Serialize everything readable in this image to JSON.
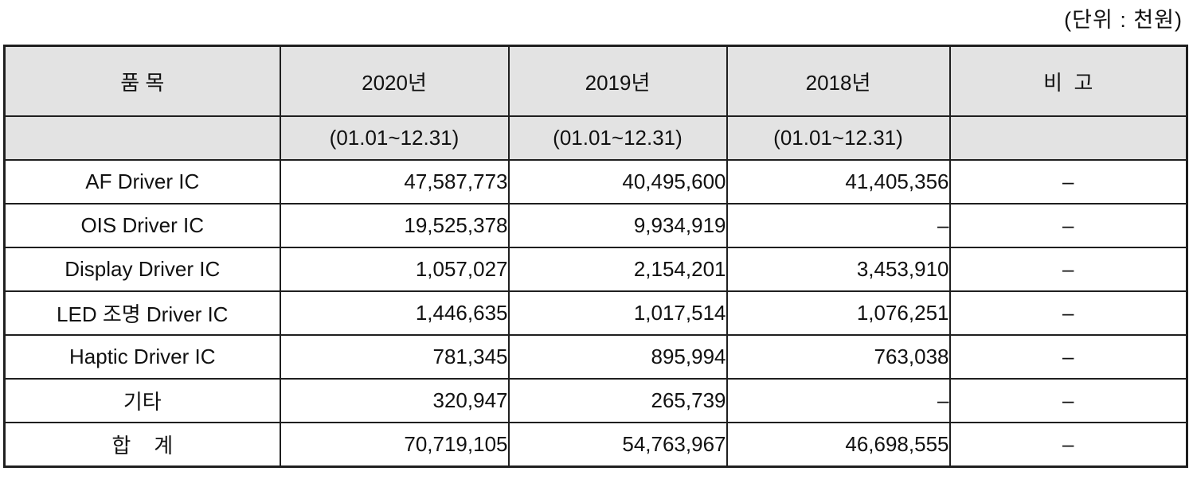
{
  "unit_label": "(단위 : 천원)",
  "table": {
    "columns": [
      {
        "label": "품 목",
        "sub": ""
      },
      {
        "label": "2020년",
        "sub": "(01.01~12.31)"
      },
      {
        "label": "2019년",
        "sub": "(01.01~12.31)"
      },
      {
        "label": "2018년",
        "sub": "(01.01~12.31)"
      },
      {
        "label": "비  고",
        "sub": ""
      }
    ],
    "rows": [
      {
        "item": "AF Driver IC",
        "y2020": "47,587,773",
        "y2019": "40,495,600",
        "y2018": "41,405,356",
        "note": "–"
      },
      {
        "item": "OIS Driver IC",
        "y2020": "19,525,378",
        "y2019": "9,934,919",
        "y2018": "–",
        "note": "–"
      },
      {
        "item": "Display Driver IC",
        "y2020": "1,057,027",
        "y2019": "2,154,201",
        "y2018": "3,453,910",
        "note": "–"
      },
      {
        "item": "LED 조명 Driver IC",
        "y2020": "1,446,635",
        "y2019": "1,017,514",
        "y2018": "1,076,251",
        "note": "–"
      },
      {
        "item": "Haptic Driver IC",
        "y2020": "781,345",
        "y2019": "895,994",
        "y2018": "763,038",
        "note": "–"
      },
      {
        "item": "기타",
        "y2020": "320,947",
        "y2019": "265,739",
        "y2018": "–",
        "note": "–"
      },
      {
        "item": "합    계",
        "y2020": "70,719,105",
        "y2019": "54,763,967",
        "y2018": "46,698,555",
        "note": "–"
      }
    ],
    "colors": {
      "header_bg": "#e3e3e3",
      "border": "#1f1f1f",
      "text": "#111111",
      "page_bg": "#ffffff"
    }
  }
}
